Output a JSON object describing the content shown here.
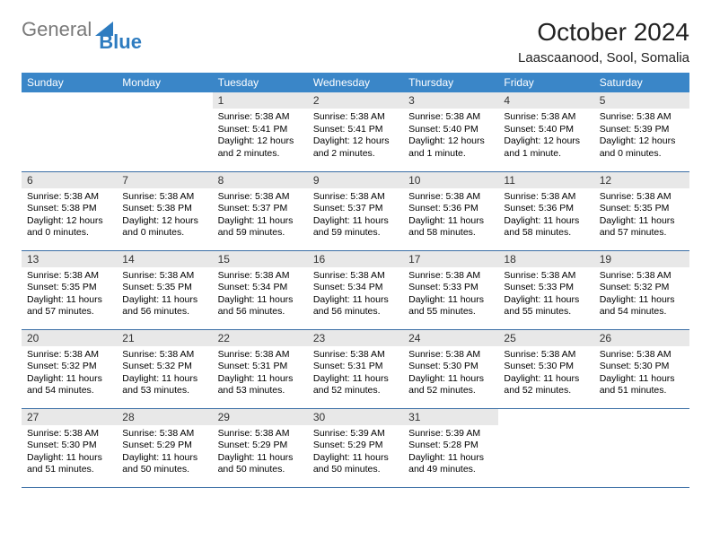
{
  "logo": {
    "text1": "General",
    "text2": "Blue",
    "color_general": "#7a7a7a",
    "color_blue": "#2e7cc0",
    "tri_color": "#2e7cc0"
  },
  "title": "October 2024",
  "location": "Laascaanood, Sool, Somalia",
  "style": {
    "header_bg": "#3a86c8",
    "header_fg": "#ffffff",
    "daynum_bg": "#e8e8e8",
    "row_border": "#3a6ea5",
    "page_bg": "#ffffff",
    "body_font_size": 10.5,
    "header_font_size": 12,
    "title_font_size": 28,
    "location_font_size": 15
  },
  "weekdays": [
    "Sunday",
    "Monday",
    "Tuesday",
    "Wednesday",
    "Thursday",
    "Friday",
    "Saturday"
  ],
  "weeks": [
    [
      null,
      null,
      {
        "n": "1",
        "sr": "5:38 AM",
        "ss": "5:41 PM",
        "dl": "12 hours and 2 minutes."
      },
      {
        "n": "2",
        "sr": "5:38 AM",
        "ss": "5:41 PM",
        "dl": "12 hours and 2 minutes."
      },
      {
        "n": "3",
        "sr": "5:38 AM",
        "ss": "5:40 PM",
        "dl": "12 hours and 1 minute."
      },
      {
        "n": "4",
        "sr": "5:38 AM",
        "ss": "5:40 PM",
        "dl": "12 hours and 1 minute."
      },
      {
        "n": "5",
        "sr": "5:38 AM",
        "ss": "5:39 PM",
        "dl": "12 hours and 0 minutes."
      }
    ],
    [
      {
        "n": "6",
        "sr": "5:38 AM",
        "ss": "5:38 PM",
        "dl": "12 hours and 0 minutes."
      },
      {
        "n": "7",
        "sr": "5:38 AM",
        "ss": "5:38 PM",
        "dl": "12 hours and 0 minutes."
      },
      {
        "n": "8",
        "sr": "5:38 AM",
        "ss": "5:37 PM",
        "dl": "11 hours and 59 minutes."
      },
      {
        "n": "9",
        "sr": "5:38 AM",
        "ss": "5:37 PM",
        "dl": "11 hours and 59 minutes."
      },
      {
        "n": "10",
        "sr": "5:38 AM",
        "ss": "5:36 PM",
        "dl": "11 hours and 58 minutes."
      },
      {
        "n": "11",
        "sr": "5:38 AM",
        "ss": "5:36 PM",
        "dl": "11 hours and 58 minutes."
      },
      {
        "n": "12",
        "sr": "5:38 AM",
        "ss": "5:35 PM",
        "dl": "11 hours and 57 minutes."
      }
    ],
    [
      {
        "n": "13",
        "sr": "5:38 AM",
        "ss": "5:35 PM",
        "dl": "11 hours and 57 minutes."
      },
      {
        "n": "14",
        "sr": "5:38 AM",
        "ss": "5:35 PM",
        "dl": "11 hours and 56 minutes."
      },
      {
        "n": "15",
        "sr": "5:38 AM",
        "ss": "5:34 PM",
        "dl": "11 hours and 56 minutes."
      },
      {
        "n": "16",
        "sr": "5:38 AM",
        "ss": "5:34 PM",
        "dl": "11 hours and 56 minutes."
      },
      {
        "n": "17",
        "sr": "5:38 AM",
        "ss": "5:33 PM",
        "dl": "11 hours and 55 minutes."
      },
      {
        "n": "18",
        "sr": "5:38 AM",
        "ss": "5:33 PM",
        "dl": "11 hours and 55 minutes."
      },
      {
        "n": "19",
        "sr": "5:38 AM",
        "ss": "5:32 PM",
        "dl": "11 hours and 54 minutes."
      }
    ],
    [
      {
        "n": "20",
        "sr": "5:38 AM",
        "ss": "5:32 PM",
        "dl": "11 hours and 54 minutes."
      },
      {
        "n": "21",
        "sr": "5:38 AM",
        "ss": "5:32 PM",
        "dl": "11 hours and 53 minutes."
      },
      {
        "n": "22",
        "sr": "5:38 AM",
        "ss": "5:31 PM",
        "dl": "11 hours and 53 minutes."
      },
      {
        "n": "23",
        "sr": "5:38 AM",
        "ss": "5:31 PM",
        "dl": "11 hours and 52 minutes."
      },
      {
        "n": "24",
        "sr": "5:38 AM",
        "ss": "5:30 PM",
        "dl": "11 hours and 52 minutes."
      },
      {
        "n": "25",
        "sr": "5:38 AM",
        "ss": "5:30 PM",
        "dl": "11 hours and 52 minutes."
      },
      {
        "n": "26",
        "sr": "5:38 AM",
        "ss": "5:30 PM",
        "dl": "11 hours and 51 minutes."
      }
    ],
    [
      {
        "n": "27",
        "sr": "5:38 AM",
        "ss": "5:30 PM",
        "dl": "11 hours and 51 minutes."
      },
      {
        "n": "28",
        "sr": "5:38 AM",
        "ss": "5:29 PM",
        "dl": "11 hours and 50 minutes."
      },
      {
        "n": "29",
        "sr": "5:38 AM",
        "ss": "5:29 PM",
        "dl": "11 hours and 50 minutes."
      },
      {
        "n": "30",
        "sr": "5:39 AM",
        "ss": "5:29 PM",
        "dl": "11 hours and 50 minutes."
      },
      {
        "n": "31",
        "sr": "5:39 AM",
        "ss": "5:28 PM",
        "dl": "11 hours and 49 minutes."
      },
      null,
      null
    ]
  ],
  "labels": {
    "sunrise": "Sunrise:",
    "sunset": "Sunset:",
    "daylight": "Daylight:"
  }
}
